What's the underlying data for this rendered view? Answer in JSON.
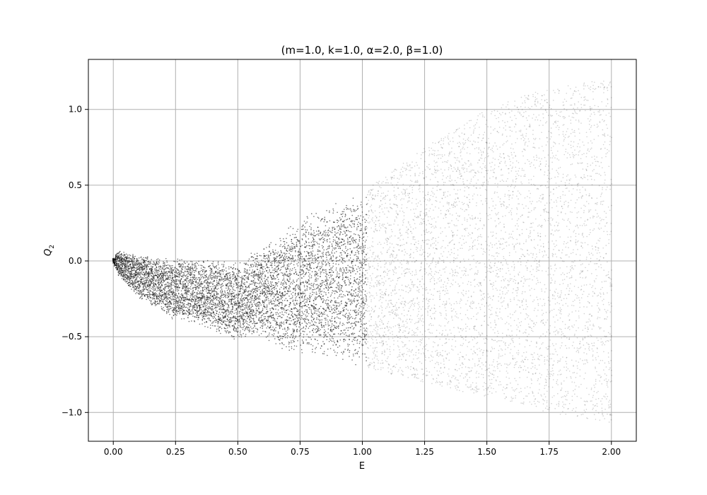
{
  "chart_data": {
    "type": "scatter",
    "title": "(m=1.0, k=1.0, α=2.0, β=1.0)",
    "xlabel": "E",
    "ylabel_main": "Q",
    "ylabel_sub": "2",
    "xlim": [
      -0.1,
      2.1
    ],
    "ylim": [
      -1.19,
      1.33
    ],
    "xticks": [
      0.0,
      0.25,
      0.5,
      0.75,
      1.0,
      1.25,
      1.5,
      1.75,
      2.0
    ],
    "xtick_labels": [
      "0.00",
      "0.25",
      "0.50",
      "0.75",
      "1.00",
      "1.25",
      "1.50",
      "1.75",
      "2.00"
    ],
    "yticks": [
      -1.0,
      -0.5,
      0.0,
      0.5,
      1.0
    ],
    "ytick_labels": [
      "−1.0",
      "−0.5",
      "0.0",
      "0.5",
      "1.0"
    ],
    "grid": true,
    "marker_color": "#000000",
    "series": [
      {
        "description_values": [
          {
            "x": 0.0,
            "y_min": -0.02,
            "y_max": 0.02
          },
          {
            "x": 0.02,
            "y_min": -0.1,
            "y_max": 0.07
          },
          {
            "x": 0.1,
            "y_min": -0.25,
            "y_max": 0.05
          },
          {
            "x": 0.25,
            "y_min": -0.4,
            "y_max": 0.01
          },
          {
            "x": 0.26,
            "y_min": -0.38,
            "y_max": 0.03
          },
          {
            "x": 0.5,
            "y_min": -0.53,
            "y_max": 0.0
          },
          {
            "x": 0.6,
            "y_min": -0.5,
            "y_max": 0.1
          },
          {
            "x": 0.7,
            "y_min": -0.62,
            "y_max": 0.22
          },
          {
            "x": 0.75,
            "y_min": -0.63,
            "y_max": 0.3
          },
          {
            "x": 0.9,
            "y_min": -0.67,
            "y_max": 0.42
          },
          {
            "x": 1.0,
            "y_min": -0.7,
            "y_max": 0.45
          },
          {
            "x": 1.25,
            "y_min": -0.8,
            "y_max": 0.75
          },
          {
            "x": 1.5,
            "y_min": -0.9,
            "y_max": 1.0
          },
          {
            "x": 1.75,
            "y_min": -1.0,
            "y_max": 1.15
          },
          {
            "x": 2.0,
            "y_min": -1.07,
            "y_max": 1.2
          }
        ]
      }
    ]
  }
}
